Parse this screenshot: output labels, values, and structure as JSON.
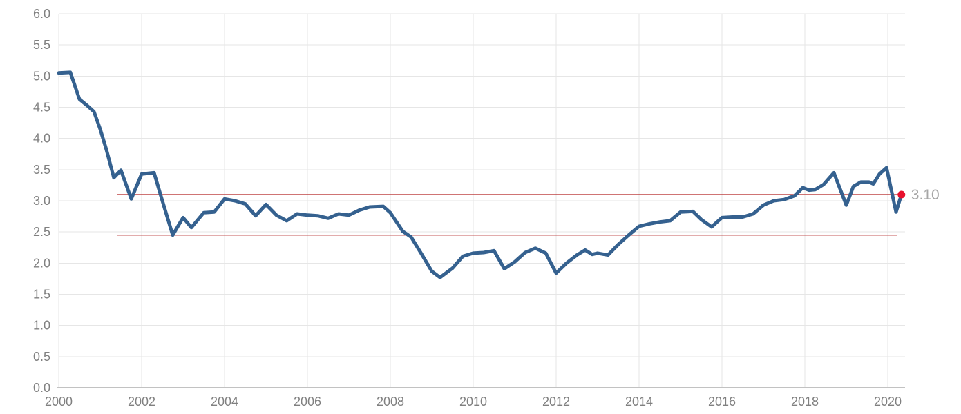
{
  "chart_data": {
    "type": "line",
    "title": "",
    "xlabel": "",
    "ylabel": "",
    "grid": true,
    "legend": "none",
    "xlim": [
      2000,
      2020.45
    ],
    "ylim": [
      0.0,
      6.0
    ],
    "x_ticks": [
      {
        "value": 2000,
        "label": "2000"
      },
      {
        "value": 2002,
        "label": "2002"
      },
      {
        "value": 2004,
        "label": "2004"
      },
      {
        "value": 2006,
        "label": "2006"
      },
      {
        "value": 2008,
        "label": "2008"
      },
      {
        "value": 2010,
        "label": "2010"
      },
      {
        "value": 2012,
        "label": "2012"
      },
      {
        "value": 2014,
        "label": "2014"
      },
      {
        "value": 2016,
        "label": "2016"
      },
      {
        "value": 2018,
        "label": "2018"
      },
      {
        "value": 2020,
        "label": "2020"
      }
    ],
    "y_ticks": [
      {
        "value": 0.0,
        "label": "0.0"
      },
      {
        "value": 0.5,
        "label": "0.5"
      },
      {
        "value": 1.0,
        "label": "1.0"
      },
      {
        "value": 1.5,
        "label": "1.5"
      },
      {
        "value": 2.0,
        "label": "2.0"
      },
      {
        "value": 2.5,
        "label": "2.5"
      },
      {
        "value": 3.0,
        "label": "3.0"
      },
      {
        "value": 3.5,
        "label": "3.5"
      },
      {
        "value": 4.0,
        "label": "4.0"
      },
      {
        "value": 4.5,
        "label": "4.5"
      },
      {
        "value": 5.0,
        "label": "5.0"
      },
      {
        "value": 5.5,
        "label": "5.5"
      },
      {
        "value": 6.0,
        "label": "6.0"
      }
    ],
    "colors": {
      "series_line": "#35618f",
      "ref_line": "#b22222",
      "end_dot": "#e8112d",
      "end_label": "#a6a6a6",
      "tick_label": "#808080",
      "gridline": "#e6e6e6",
      "axis_line": "#c2c2c2",
      "background": "#ffffff"
    },
    "ref_lines": [
      {
        "value": 3.1,
        "x_start": 2001.4,
        "x_end": 2020.33
      },
      {
        "value": 2.45,
        "x_start": 2001.4,
        "x_end": 2020.23
      }
    ],
    "end_marker": {
      "x": 2020.33,
      "y": 3.1,
      "label": "3.10"
    },
    "series": [
      {
        "name": "value",
        "points": [
          [
            2000.0,
            5.05
          ],
          [
            2000.28,
            5.06
          ],
          [
            2000.5,
            4.63
          ],
          [
            2000.7,
            4.52
          ],
          [
            2000.85,
            4.43
          ],
          [
            2001.0,
            4.15
          ],
          [
            2001.15,
            3.82
          ],
          [
            2001.33,
            3.37
          ],
          [
            2001.5,
            3.49
          ],
          [
            2001.75,
            3.03
          ],
          [
            2002.0,
            3.43
          ],
          [
            2002.3,
            3.45
          ],
          [
            2002.5,
            3.0
          ],
          [
            2002.75,
            2.45
          ],
          [
            2003.0,
            2.73
          ],
          [
            2003.2,
            2.57
          ],
          [
            2003.5,
            2.81
          ],
          [
            2003.75,
            2.82
          ],
          [
            2004.0,
            3.03
          ],
          [
            2004.25,
            3.0
          ],
          [
            2004.5,
            2.95
          ],
          [
            2004.75,
            2.76
          ],
          [
            2005.0,
            2.94
          ],
          [
            2005.25,
            2.77
          ],
          [
            2005.5,
            2.68
          ],
          [
            2005.75,
            2.79
          ],
          [
            2006.0,
            2.77
          ],
          [
            2006.25,
            2.76
          ],
          [
            2006.5,
            2.72
          ],
          [
            2006.75,
            2.79
          ],
          [
            2007.0,
            2.77
          ],
          [
            2007.25,
            2.85
          ],
          [
            2007.5,
            2.9
          ],
          [
            2007.83,
            2.91
          ],
          [
            2008.0,
            2.81
          ],
          [
            2008.3,
            2.51
          ],
          [
            2008.5,
            2.42
          ],
          [
            2008.75,
            2.15
          ],
          [
            2009.0,
            1.87
          ],
          [
            2009.2,
            1.77
          ],
          [
            2009.5,
            1.92
          ],
          [
            2009.75,
            2.11
          ],
          [
            2010.0,
            2.16
          ],
          [
            2010.25,
            2.17
          ],
          [
            2010.5,
            2.2
          ],
          [
            2010.75,
            1.91
          ],
          [
            2011.0,
            2.02
          ],
          [
            2011.25,
            2.17
          ],
          [
            2011.5,
            2.24
          ],
          [
            2011.75,
            2.16
          ],
          [
            2012.0,
            1.84
          ],
          [
            2012.25,
            2.0
          ],
          [
            2012.5,
            2.13
          ],
          [
            2012.7,
            2.21
          ],
          [
            2012.87,
            2.14
          ],
          [
            2013.0,
            2.16
          ],
          [
            2013.25,
            2.13
          ],
          [
            2013.5,
            2.3
          ],
          [
            2013.75,
            2.45
          ],
          [
            2014.0,
            2.59
          ],
          [
            2014.25,
            2.63
          ],
          [
            2014.5,
            2.66
          ],
          [
            2014.75,
            2.68
          ],
          [
            2015.0,
            2.82
          ],
          [
            2015.3,
            2.83
          ],
          [
            2015.5,
            2.7
          ],
          [
            2015.75,
            2.58
          ],
          [
            2016.0,
            2.73
          ],
          [
            2016.25,
            2.74
          ],
          [
            2016.5,
            2.74
          ],
          [
            2016.75,
            2.79
          ],
          [
            2017.0,
            2.93
          ],
          [
            2017.25,
            3.0
          ],
          [
            2017.5,
            3.02
          ],
          [
            2017.75,
            3.08
          ],
          [
            2017.95,
            3.21
          ],
          [
            2018.1,
            3.17
          ],
          [
            2018.25,
            3.18
          ],
          [
            2018.45,
            3.26
          ],
          [
            2018.7,
            3.45
          ],
          [
            2019.0,
            2.93
          ],
          [
            2019.17,
            3.23
          ],
          [
            2019.35,
            3.3
          ],
          [
            2019.55,
            3.3
          ],
          [
            2019.65,
            3.27
          ],
          [
            2019.8,
            3.43
          ],
          [
            2019.97,
            3.53
          ],
          [
            2020.2,
            2.82
          ],
          [
            2020.33,
            3.1
          ]
        ]
      }
    ]
  }
}
